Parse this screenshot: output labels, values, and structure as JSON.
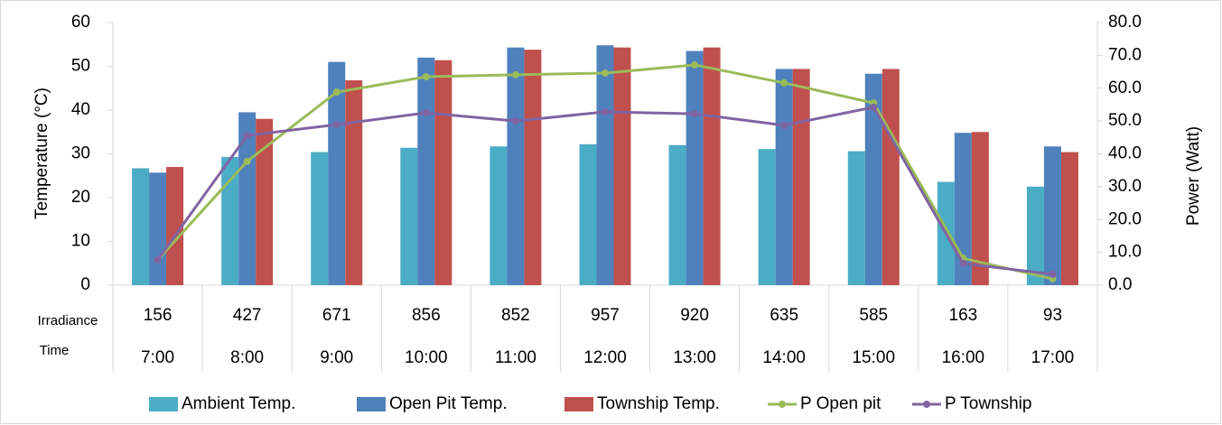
{
  "chart_data": {
    "type": "bar",
    "categories": [
      "7:00",
      "8:00",
      "9:00",
      "10:00",
      "11:00",
      "12:00",
      "13:00",
      "14:00",
      "15:00",
      "16:00",
      "17:00"
    ],
    "irradiance": [
      156,
      427,
      671,
      856,
      852,
      957,
      920,
      635,
      585,
      163,
      93
    ],
    "row_labels": [
      "Irradiance",
      "Time"
    ],
    "ylabel": "Temperature (°C)",
    "y2label": "Power (Watt)",
    "ylim": [
      0,
      60
    ],
    "yticks": [
      0,
      10,
      20,
      30,
      40,
      50,
      60
    ],
    "y2lim": [
      0,
      80
    ],
    "y2ticks": [
      {
        "value": 0,
        "label": "0.0"
      },
      {
        "value": 10,
        "label": "10.0"
      },
      {
        "value": 20,
        "label": "20.0"
      },
      {
        "value": 30,
        "label": "30.0"
      },
      {
        "value": 40,
        "label": "40.0"
      },
      {
        "value": 50,
        "label": "50.0"
      },
      {
        "value": 60,
        "label": "60.0"
      },
      {
        "value": 70,
        "label": "70.0"
      },
      {
        "value": 80,
        "label": "80.0"
      }
    ],
    "legend": "bottom",
    "series": [
      {
        "name": "Ambient Temp.",
        "type": "bar",
        "color": "#4bacc6",
        "values": [
          26.7,
          29.3,
          30.4,
          31.4,
          31.7,
          32.2,
          32.0,
          31.1,
          30.6,
          23.6,
          22.5
        ]
      },
      {
        "name": "Open Pit Temp.",
        "type": "bar",
        "color": "#4f81bd",
        "values": [
          25.7,
          39.5,
          51.0,
          52.0,
          54.3,
          54.8,
          53.5,
          49.4,
          48.3,
          34.8,
          31.7
        ]
      },
      {
        "name": "Township Temp.",
        "type": "bar",
        "color": "#c0504d",
        "values": [
          27.0,
          38.0,
          46.8,
          51.4,
          53.8,
          54.3,
          54.3,
          49.4,
          49.4,
          35.0,
          30.4
        ]
      },
      {
        "name": "P Open pit",
        "type": "line",
        "axis": "y2",
        "color": "#9bbb59",
        "values": [
          7.7,
          37.7,
          58.8,
          63.5,
          64.1,
          64.6,
          67.1,
          61.6,
          55.5,
          8.2,
          1.9
        ]
      },
      {
        "name": "P Township",
        "type": "line",
        "axis": "y2",
        "color": "#8064a2",
        "values": [
          7.7,
          45.6,
          48.9,
          52.5,
          50.0,
          52.8,
          52.2,
          48.7,
          54.2,
          6.6,
          3.3
        ]
      }
    ]
  }
}
